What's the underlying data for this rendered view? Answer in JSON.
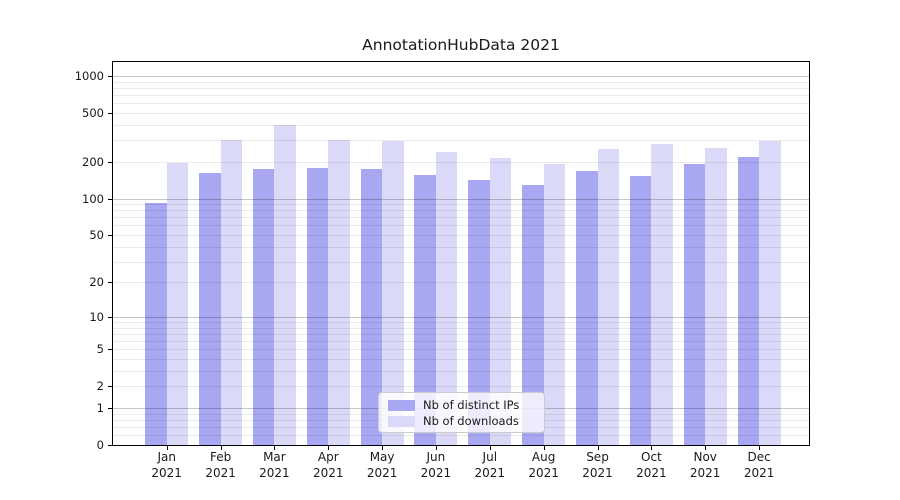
{
  "chart_data": {
    "type": "bar",
    "title": "AnnotationHubData 2021",
    "categories": [
      "Jan 2021",
      "Feb 2021",
      "Mar 2021",
      "Apr 2021",
      "May 2021",
      "Jun 2021",
      "Jul 2021",
      "Aug 2021",
      "Sep 2021",
      "Oct 2021",
      "Nov 2021",
      "Dec 2021"
    ],
    "x_tick_months": [
      "Jan",
      "Feb",
      "Mar",
      "Apr",
      "May",
      "Jun",
      "Jul",
      "Aug",
      "Sep",
      "Oct",
      "Nov",
      "Dec"
    ],
    "x_tick_year": "2021",
    "series": [
      {
        "name": "Nb of distinct IPs",
        "color": "#a7a7f2",
        "values": [
          92,
          162,
          175,
          177,
          175,
          155,
          142,
          130,
          168,
          153,
          192,
          218
        ]
      },
      {
        "name": "Nb of downloads",
        "color": "#dadaf8",
        "values": [
          196,
          299,
          398,
          301,
          293,
          238,
          213,
          191,
          255,
          280,
          259,
          295
        ]
      }
    ],
    "y_ticks": [
      0,
      1,
      2,
      5,
      10,
      20,
      50,
      100,
      200,
      500,
      1000
    ],
    "y_scale": "log1p",
    "ylim": [
      0,
      1270
    ],
    "grid": true,
    "major_grid_values": [
      1,
      10,
      100,
      1000
    ],
    "minor_grid_values": [
      0.2,
      0.4,
      0.6,
      0.8,
      2,
      3,
      4,
      5,
      6,
      7,
      8,
      9,
      20,
      30,
      40,
      50,
      60,
      70,
      80,
      90,
      200,
      300,
      400,
      500,
      600,
      700,
      800,
      900
    ],
    "legend_position": "lower center inside plot",
    "xlabel": "",
    "ylabel": ""
  },
  "colors": {
    "bar_distinct_ips": "#a7a7f2",
    "bar_downloads": "#dadaf8",
    "grid_major": "#c7c7c7",
    "grid_minor": "#ebebeb",
    "spine": "#000000",
    "text": "#1a1a1a",
    "legend_border": "#cccccc",
    "legend_background": "rgba(255,255,255,0.8)"
  }
}
